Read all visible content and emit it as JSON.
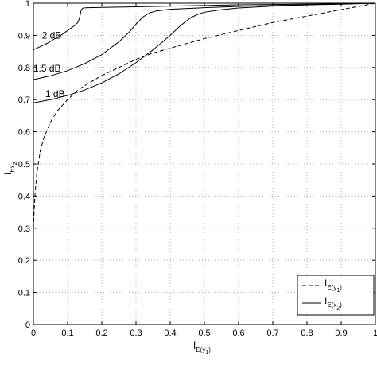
{
  "chart_data": {
    "type": "line",
    "title": "",
    "xlabel": {
      "main": "I",
      "sub": "E(y",
      "subsub": "1",
      "close": ")"
    },
    "ylabel": {
      "main": "I",
      "sub": "Ex",
      "subsub": "2"
    },
    "xlim": [
      0,
      1
    ],
    "ylim": [
      0,
      1
    ],
    "grid": true,
    "grid_style": "dotted",
    "legend_position": "bottom-right",
    "x_ticks": [
      {
        "value": 0,
        "label": "0"
      },
      {
        "value": 0.1,
        "label": "0.1"
      },
      {
        "value": 0.2,
        "label": "0.2"
      },
      {
        "value": 0.3,
        "label": "0.3"
      },
      {
        "value": 0.4,
        "label": "0.4"
      },
      {
        "value": 0.5,
        "label": "0.5"
      },
      {
        "value": 0.6,
        "label": "0.6"
      },
      {
        "value": 0.7,
        "label": "0.7"
      },
      {
        "value": 0.8,
        "label": "0.8"
      },
      {
        "value": 0.9,
        "label": "0.9"
      },
      {
        "value": 1,
        "label": "1"
      }
    ],
    "y_ticks": [
      {
        "value": 0,
        "label": "0"
      },
      {
        "value": 0.1,
        "label": "0.1"
      },
      {
        "value": 0.2,
        "label": "0.2"
      },
      {
        "value": 0.3,
        "label": "0.3"
      },
      {
        "value": 0.4,
        "label": "0.4"
      },
      {
        "value": 0.5,
        "label": "0.5"
      },
      {
        "value": 0.6,
        "label": "0.6"
      },
      {
        "value": 0.7,
        "label": "0.7"
      },
      {
        "value": 0.8,
        "label": "0.8"
      },
      {
        "value": 0.9,
        "label": "0.9"
      },
      {
        "value": 1,
        "label": "1"
      }
    ],
    "legend": [
      {
        "main": "I",
        "sub": "E(y",
        "subsub": "1",
        "close": ")",
        "style": "dashed"
      },
      {
        "main": "I",
        "sub": "E(x",
        "subsub": "2",
        "close": ")",
        "style": "solid"
      }
    ],
    "series": [
      {
        "style": "dashed",
        "x": [
          0.0,
          0.002,
          0.005,
          0.01,
          0.02,
          0.03,
          0.05,
          0.07,
          0.1,
          0.13,
          0.16,
          0.2,
          0.25,
          0.3,
          0.35,
          0.4,
          0.5,
          0.6,
          0.7,
          0.8,
          0.9,
          1.0
        ],
        "y": [
          0.3,
          0.35,
          0.41,
          0.47,
          0.54,
          0.58,
          0.63,
          0.665,
          0.7,
          0.73,
          0.75,
          0.775,
          0.8,
          0.825,
          0.845,
          0.86,
          0.89,
          0.915,
          0.94,
          0.96,
          0.98,
          1.0
        ]
      },
      {
        "style": "solid",
        "label": "2 dB",
        "x": [
          0.0,
          0.02,
          0.04,
          0.06,
          0.08,
          0.1,
          0.12,
          0.13,
          0.135,
          0.14,
          0.145,
          0.16,
          0.2,
          0.3,
          0.4,
          0.5,
          0.6,
          0.7,
          0.8,
          0.9,
          1.0
        ],
        "y": [
          0.855,
          0.865,
          0.875,
          0.888,
          0.9,
          0.915,
          0.93,
          0.94,
          0.955,
          0.98,
          0.985,
          0.986,
          0.987,
          0.989,
          0.991,
          0.993,
          0.995,
          0.996,
          0.997,
          0.998,
          1.0
        ]
      },
      {
        "style": "solid",
        "label": "1.5 dB",
        "x": [
          0.0,
          0.05,
          0.1,
          0.15,
          0.2,
          0.25,
          0.28,
          0.3,
          0.32,
          0.34,
          0.36,
          0.4,
          0.5,
          0.6,
          0.7,
          0.8,
          0.9,
          1.0
        ],
        "y": [
          0.762,
          0.774,
          0.79,
          0.812,
          0.84,
          0.88,
          0.91,
          0.935,
          0.957,
          0.97,
          0.976,
          0.981,
          0.986,
          0.99,
          0.993,
          0.995,
          0.997,
          1.0
        ]
      },
      {
        "style": "solid",
        "label": "1 dB",
        "x": [
          0.0,
          0.05,
          0.1,
          0.15,
          0.2,
          0.25,
          0.3,
          0.35,
          0.4,
          0.43,
          0.46,
          0.48,
          0.5,
          0.55,
          0.6,
          0.7,
          0.8,
          0.9,
          1.0
        ],
        "y": [
          0.69,
          0.7,
          0.713,
          0.73,
          0.752,
          0.78,
          0.815,
          0.855,
          0.9,
          0.93,
          0.955,
          0.965,
          0.972,
          0.98,
          0.985,
          0.991,
          0.995,
          0.998,
          1.0
        ]
      }
    ],
    "annotations": [
      {
        "text": "2 dB",
        "x": 0.02,
        "y": 0.9
      },
      {
        "text": "1.5 dB",
        "x": -0.005,
        "y": 0.797
      },
      {
        "text": "1 dB",
        "x": 0.03,
        "y": 0.718
      }
    ]
  }
}
